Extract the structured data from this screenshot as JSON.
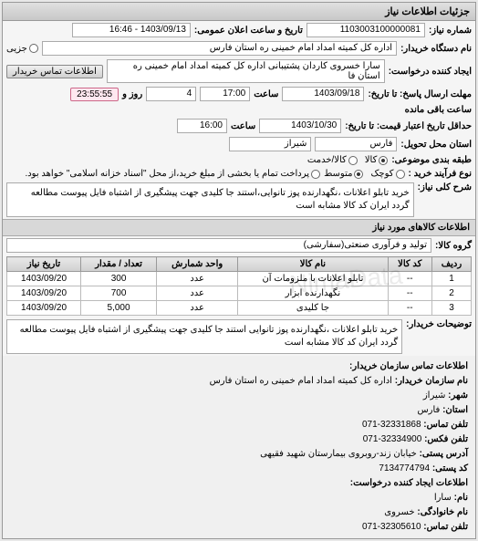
{
  "panel_title": "جزئیات اطلاعات نیاز",
  "need_number_label": "شماره نیاز:",
  "need_number": "1103003100000081",
  "public_date_label": "تاریخ و ساعت اعلان عمومی:",
  "public_date": "1403/09/13 - 16:46",
  "buyer_label": "نام دستگاه خریدار:",
  "buyer_name": "اداره کل کمیته امداد امام خمینی ره استان فارس",
  "partial_label": "جزیی",
  "requester_label": "ایجاد کننده درخواست:",
  "requester": "سارا خسروی کاردان پشتیبانی اداره کل کمیته امداد امام خمینی ره استان فا",
  "buyer_contact_btn": "اطلاعات تماس خریدار",
  "response_deadline_label": "مهلت ارسال پاسخ: تا تاریخ:",
  "response_date": "1403/09/18",
  "time_label": "ساعت",
  "response_time": "17:00",
  "days_num": "4",
  "days_label": "روز و",
  "remaining_time": "23:55:55",
  "remaining_label": "ساعت باقی مانده",
  "validity_label": "حداقل تاریخ اعتبار قیمت: تا تاریخ:",
  "validity_date": "1403/10/30",
  "validity_time": "16:00",
  "delivery_place_label": "استان محل تحویل:",
  "province": "فارس",
  "city": "شیراز",
  "package_label": "طبقه بندی موضوعی:",
  "radio_goods": "کالا",
  "radio_credit": "کالا/خدمت",
  "quote_type_label": "نوع فرآیند خرید :",
  "radio_small": "کوچک",
  "radio_medium": "متوسط",
  "payment_note": "پرداخت تمام یا بخشی از مبلغ خرید،از محل \"اسناد خزانه اسلامی\" خواهد بود.",
  "main_desc_label": "شرح کلی نیاز:",
  "main_desc": "خرید تابلو اعلانات ،نگهدارنده پوز تانوایی،استند جا کلیدی جهت پیشگیری از اشتباه فایل پیوست مطالعه گردد ایران کد کالا مشابه است",
  "goods_section": "اطلاعات کالاهای مورد نیاز",
  "goods_group_label": "گروه کالا:",
  "goods_group": "تولید و فرآوری صنعتی(سفارشی)",
  "table": {
    "headers": [
      "ردیف",
      "کد کالا",
      "نام کالا",
      "واحد شمارش",
      "تعداد / مقدار",
      "تاریخ نیاز"
    ],
    "rows": [
      [
        "1",
        "--",
        "تابلو اعلانات با ملزومات آن",
        "عدد",
        "300",
        "1403/09/20"
      ],
      [
        "2",
        "--",
        "نگهدارنده ابزار",
        "عدد",
        "700",
        "1403/09/20"
      ],
      [
        "3",
        "--",
        "جا کلیدی",
        "عدد",
        "5,000",
        "1403/09/20"
      ]
    ]
  },
  "buyer_notes_label": "توضیحات خریدار:",
  "buyer_notes": "خرید تابلو اعلانات ،نگهدارنده پوز تانوایی استند جا کلیدی جهت پیشگیری از اشتباه فایل پیوست مطالعه گردد ایران کد کالا مشابه است",
  "contact_org_title": "اطلاعات تماس سازمان خریدار:",
  "org_name_label": "نام سازمان خریدار:",
  "org_name": "اداره کل کمیته امداد امام خمینی ره استان فارس",
  "city_label": "شهر:",
  "city_val": "شیراز",
  "province_label": "استان:",
  "province_val": "فارس",
  "phone_label": "تلفن تماس:",
  "phone": "32331868-071",
  "fax_label": "تلفن فکس:",
  "fax": "32334900-071",
  "address_label": "آدرس پستی:",
  "address": "خیابان زند-روبروی بیمارستان شهید فقیهی",
  "postal_label": "کد پستی:",
  "postal": "7134774794",
  "creator_title": "اطلاعات ایجاد کننده درخواست:",
  "fname_label": "نام:",
  "fname": "سارا",
  "lname_label": "نام خانوادگی:",
  "lname": "خسروی",
  "creator_phone_label": "تلفن تماس:",
  "creator_phone": "32305610-071"
}
